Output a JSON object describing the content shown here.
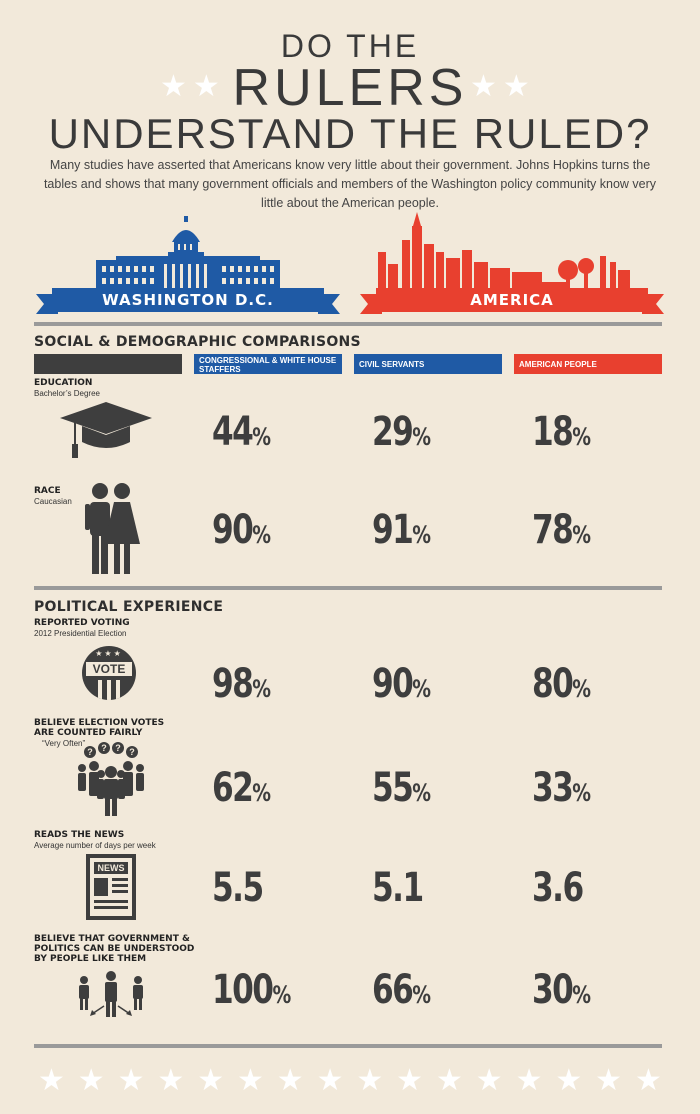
{
  "header": {
    "title_line1": "DO THE",
    "title_line2": "RULERS",
    "title_line3": "UNDERSTAND THE RULED?",
    "intro": "Many studies have asserted that Americans know very little about their government. Johns Hopkins turns the tables and shows that many government officials and members of the Washington policy community know very little about the American people."
  },
  "banners": {
    "left_label": "WASHINGTON D.C.",
    "right_label": "AMERICA"
  },
  "colors": {
    "background": "#f2e9da",
    "blue": "#1f5aa5",
    "red": "#e8402f",
    "dark": "#3e3e3e",
    "gray_divider": "#9a9a9a"
  },
  "columns": {
    "col1": "CONGRESSIONAL & WHITE HOUSE STAFFERS",
    "col2": "CIVIL SERVANTS",
    "col3": "AMERICAN PEOPLE"
  },
  "sections": {
    "social": {
      "title": "SOCIAL & DEMOGRAPHIC COMPARISONS",
      "education": {
        "label": "EDUCATION",
        "sublabel": "Bachelor’s Degree",
        "icon": "graduation-cap-icon",
        "values": [
          "44",
          "29",
          "18"
        ],
        "unit": "%"
      },
      "race": {
        "label": "RACE",
        "sublabel": "Caucasian",
        "icon": "man-woman-icon",
        "values": [
          "90",
          "91",
          "78"
        ],
        "unit": "%"
      }
    },
    "political": {
      "title": "POLITICAL EXPERIENCE",
      "voting": {
        "label": "REPORTED VOTING",
        "sublabel": "2012 Presidential Election",
        "icon": "vote-badge-icon",
        "badge_text": "VOTE",
        "values": [
          "98",
          "90",
          "80"
        ],
        "unit": "%"
      },
      "fair": {
        "label_line1": "BELIEVE ELECTION VOTES",
        "label_line2": "ARE COUNTED FAIRLY",
        "sublabel": "“Very Often”",
        "icon": "questioning-crowd-icon",
        "question_mark": "?",
        "values": [
          "62",
          "55",
          "33"
        ],
        "unit": "%"
      },
      "news": {
        "label": "READS THE NEWS",
        "sublabel": "Average number of days per week",
        "icon": "newspaper-icon",
        "news_text": "NEWS",
        "values": [
          "5.5",
          "5.1",
          "3.6"
        ]
      },
      "understood": {
        "label_line1": "BELIEVE THAT GOVERNMENT &",
        "label_line2": "POLITICS CAN BE UNDERSTOOD",
        "label_line3": "BY PEOPLE LIKE THEM",
        "icon": "people-network-icon",
        "values": [
          "100",
          "66",
          "30"
        ],
        "unit": "%"
      }
    }
  }
}
